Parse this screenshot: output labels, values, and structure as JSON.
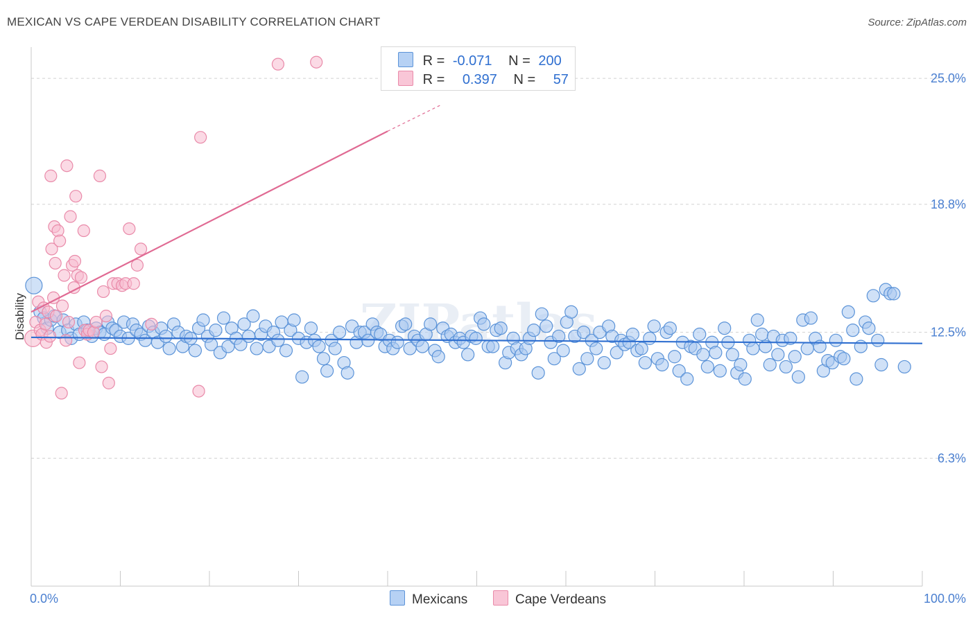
{
  "header": {
    "title": "MEXICAN VS CAPE VERDEAN DISABILITY CORRELATION CHART",
    "source": "Source: ZipAtlas.com"
  },
  "legend": {
    "series1": {
      "r_label": "R =",
      "r_value": "-0.071",
      "n_label": "N =",
      "n_value": "200"
    },
    "series2": {
      "r_label": "R =",
      "r_value": "0.397",
      "n_label": "N =",
      "n_value": "57"
    }
  },
  "bottom_legend": {
    "series1": "Mexicans",
    "series2": "Cape Verdeans"
  },
  "watermark": "ZIPatlas",
  "colors": {
    "blue_fill": "#a9c8f0",
    "blue_stroke": "#5b93d8",
    "blue_line": "#2f6fd0",
    "pink_fill": "#f7bcd0",
    "pink_stroke": "#e98aa9",
    "pink_line": "#e06a93",
    "grid": "#d0d0d0",
    "tick_text": "#4a7fd0"
  },
  "chart_data": {
    "type": "scatter",
    "title": "MEXICAN VS CAPE VERDEAN DISABILITY CORRELATION CHART",
    "xlabel": "",
    "ylabel": "Disability",
    "xlim": [
      0,
      100
    ],
    "ylim": [
      0,
      26.2
    ],
    "x_tick_labels": {
      "min": "0.0%",
      "max": "100.0%"
    },
    "y_ticks": [
      {
        "value": 25.0,
        "label": "25.0%"
      },
      {
        "value": 18.8,
        "label": "18.8%"
      },
      {
        "value": 12.5,
        "label": "12.5%"
      },
      {
        "value": 6.3,
        "label": "6.3%"
      }
    ],
    "series": [
      {
        "name": "Mexicans",
        "color": "blue",
        "r": -0.071,
        "n": 200,
        "trend": {
          "x0": 0,
          "y0": 12.25,
          "x1": 100,
          "y1": 11.95
        },
        "points": [
          [
            0.3,
            14.8
          ],
          [
            1.0,
            13.5
          ],
          [
            1.4,
            13.2
          ],
          [
            1.8,
            12.7
          ],
          [
            2.2,
            13.1
          ],
          [
            2.6,
            13.3
          ],
          [
            3.2,
            12.5
          ],
          [
            3.6,
            13.1
          ],
          [
            4.1,
            12.6
          ],
          [
            4.5,
            12.2
          ],
          [
            5.0,
            12.9
          ],
          [
            5.4,
            12.4
          ],
          [
            5.9,
            13.0
          ],
          [
            6.3,
            12.6
          ],
          [
            6.8,
            12.3
          ],
          [
            7.3,
            12.7
          ],
          [
            7.7,
            12.5
          ],
          [
            8.2,
            12.4
          ],
          [
            8.6,
            13.0
          ],
          [
            9.1,
            12.7
          ],
          [
            9.5,
            12.6
          ],
          [
            10.0,
            12.3
          ],
          [
            10.4,
            13.0
          ],
          [
            10.9,
            12.2
          ],
          [
            11.4,
            12.9
          ],
          [
            11.8,
            12.6
          ],
          [
            12.3,
            12.4
          ],
          [
            12.8,
            12.1
          ],
          [
            13.2,
            12.8
          ],
          [
            13.7,
            12.5
          ],
          [
            14.2,
            12.0
          ],
          [
            14.6,
            12.7
          ],
          [
            15.1,
            12.3
          ],
          [
            15.5,
            11.7
          ],
          [
            16.0,
            12.9
          ],
          [
            16.5,
            12.5
          ],
          [
            17.0,
            11.8
          ],
          [
            17.4,
            12.3
          ],
          [
            17.9,
            12.2
          ],
          [
            18.4,
            11.6
          ],
          [
            18.8,
            12.7
          ],
          [
            19.3,
            13.1
          ],
          [
            19.8,
            12.3
          ],
          [
            20.2,
            11.9
          ],
          [
            20.7,
            12.6
          ],
          [
            21.2,
            11.5
          ],
          [
            21.6,
            13.2
          ],
          [
            22.1,
            11.8
          ],
          [
            22.5,
            12.7
          ],
          [
            23.0,
            12.2
          ],
          [
            23.5,
            11.9
          ],
          [
            23.9,
            12.9
          ],
          [
            24.4,
            12.3
          ],
          [
            24.9,
            13.3
          ],
          [
            25.3,
            11.7
          ],
          [
            25.8,
            12.4
          ],
          [
            26.3,
            12.8
          ],
          [
            26.7,
            11.8
          ],
          [
            27.2,
            12.5
          ],
          [
            27.7,
            12.1
          ],
          [
            28.1,
            13.0
          ],
          [
            28.6,
            11.6
          ],
          [
            29.1,
            12.6
          ],
          [
            29.5,
            13.1
          ],
          [
            30.0,
            12.2
          ],
          [
            30.4,
            10.3
          ],
          [
            30.9,
            12.0
          ],
          [
            31.4,
            12.7
          ],
          [
            31.8,
            12.1
          ],
          [
            32.3,
            11.8
          ],
          [
            32.8,
            11.2
          ],
          [
            33.2,
            10.6
          ],
          [
            33.7,
            12.1
          ],
          [
            34.1,
            11.7
          ],
          [
            34.6,
            12.5
          ],
          [
            35.1,
            11.0
          ],
          [
            35.5,
            10.5
          ],
          [
            36.0,
            12.8
          ],
          [
            36.5,
            12.0
          ],
          [
            36.9,
            12.5
          ],
          [
            37.4,
            12.5
          ],
          [
            37.8,
            12.1
          ],
          [
            38.3,
            12.9
          ],
          [
            38.8,
            12.5
          ],
          [
            39.2,
            12.4
          ],
          [
            39.7,
            11.8
          ],
          [
            40.2,
            12.1
          ],
          [
            40.6,
            11.7
          ],
          [
            41.1,
            12.0
          ],
          [
            41.6,
            12.8
          ],
          [
            42.0,
            12.9
          ],
          [
            42.5,
            11.7
          ],
          [
            43.0,
            12.3
          ],
          [
            43.4,
            12.1
          ],
          [
            43.9,
            11.8
          ],
          [
            44.3,
            12.4
          ],
          [
            44.8,
            12.9
          ],
          [
            45.3,
            11.6
          ],
          [
            45.7,
            11.3
          ],
          [
            46.2,
            12.7
          ],
          [
            46.7,
            12.3
          ],
          [
            47.1,
            12.4
          ],
          [
            47.6,
            12.0
          ],
          [
            48.1,
            12.2
          ],
          [
            48.5,
            12.0
          ],
          [
            49.0,
            11.4
          ],
          [
            49.4,
            12.3
          ],
          [
            49.9,
            12.2
          ],
          [
            50.4,
            13.2
          ],
          [
            50.8,
            12.9
          ],
          [
            51.3,
            11.8
          ],
          [
            51.8,
            11.8
          ],
          [
            52.2,
            12.6
          ],
          [
            52.7,
            12.7
          ],
          [
            53.2,
            11.0
          ],
          [
            53.6,
            11.5
          ],
          [
            54.1,
            12.2
          ],
          [
            54.5,
            11.7
          ],
          [
            55.0,
            11.4
          ],
          [
            55.5,
            11.7
          ],
          [
            55.9,
            12.2
          ],
          [
            56.4,
            12.6
          ],
          [
            56.9,
            10.5
          ],
          [
            57.3,
            13.4
          ],
          [
            57.8,
            12.8
          ],
          [
            58.3,
            12.0
          ],
          [
            58.7,
            11.2
          ],
          [
            59.2,
            12.3
          ],
          [
            59.7,
            11.6
          ],
          [
            60.1,
            13.0
          ],
          [
            60.6,
            13.5
          ],
          [
            61.0,
            12.3
          ],
          [
            61.5,
            10.7
          ],
          [
            62.0,
            12.5
          ],
          [
            62.4,
            11.2
          ],
          [
            62.9,
            12.1
          ],
          [
            63.4,
            11.7
          ],
          [
            63.8,
            12.5
          ],
          [
            64.3,
            11.0
          ],
          [
            64.8,
            12.8
          ],
          [
            65.2,
            12.3
          ],
          [
            65.7,
            11.5
          ],
          [
            66.2,
            12.1
          ],
          [
            66.6,
            11.9
          ],
          [
            67.1,
            12.0
          ],
          [
            67.5,
            12.4
          ],
          [
            68.0,
            11.6
          ],
          [
            68.5,
            11.7
          ],
          [
            68.9,
            11.0
          ],
          [
            69.4,
            12.2
          ],
          [
            69.9,
            12.8
          ],
          [
            70.3,
            11.2
          ],
          [
            70.8,
            10.9
          ],
          [
            71.3,
            12.5
          ],
          [
            71.7,
            12.7
          ],
          [
            72.2,
            11.3
          ],
          [
            72.7,
            10.6
          ],
          [
            73.1,
            12.0
          ],
          [
            73.6,
            10.2
          ],
          [
            74.0,
            11.8
          ],
          [
            74.5,
            11.7
          ],
          [
            75.0,
            12.4
          ],
          [
            75.4,
            11.4
          ],
          [
            75.9,
            10.8
          ],
          [
            76.4,
            12.0
          ],
          [
            76.8,
            11.5
          ],
          [
            77.3,
            10.6
          ],
          [
            77.8,
            12.7
          ],
          [
            78.2,
            12.0
          ],
          [
            78.7,
            11.4
          ],
          [
            79.2,
            10.5
          ],
          [
            79.6,
            10.9
          ],
          [
            80.1,
            10.2
          ],
          [
            80.6,
            12.1
          ],
          [
            81.0,
            11.7
          ],
          [
            81.5,
            13.1
          ],
          [
            82.0,
            12.4
          ],
          [
            82.4,
            11.8
          ],
          [
            82.9,
            10.9
          ],
          [
            83.3,
            12.3
          ],
          [
            83.8,
            11.4
          ],
          [
            84.3,
            12.1
          ],
          [
            84.7,
            10.8
          ],
          [
            85.2,
            12.2
          ],
          [
            85.7,
            11.3
          ],
          [
            86.1,
            10.3
          ],
          [
            86.6,
            13.1
          ],
          [
            87.1,
            11.7
          ],
          [
            87.5,
            13.2
          ],
          [
            88.0,
            12.2
          ],
          [
            88.5,
            11.8
          ],
          [
            88.9,
            10.6
          ],
          [
            89.4,
            11.1
          ],
          [
            89.9,
            11.0
          ],
          [
            90.3,
            12.1
          ],
          [
            90.8,
            11.3
          ],
          [
            91.2,
            11.2
          ],
          [
            91.7,
            13.5
          ],
          [
            92.2,
            12.6
          ],
          [
            92.6,
            10.2
          ],
          [
            93.1,
            11.8
          ],
          [
            93.6,
            13.0
          ],
          [
            94.0,
            12.7
          ],
          [
            94.5,
            14.3
          ],
          [
            95.0,
            12.1
          ],
          [
            95.4,
            10.9
          ],
          [
            95.9,
            14.6
          ],
          [
            96.4,
            14.4
          ],
          [
            96.8,
            14.4
          ],
          [
            98.0,
            10.8
          ]
        ]
      },
      {
        "name": "Cape Verdeans",
        "color": "pink",
        "r": 0.397,
        "n": 57,
        "trend": {
          "x0": 0,
          "y0": 13.5,
          "x1": 40,
          "y1": 22.4,
          "dash_x1": 46,
          "dash_y1": 23.7
        },
        "points": [
          [
            0.2,
            12.2
          ],
          [
            0.5,
            13.0
          ],
          [
            0.8,
            14.0
          ],
          [
            1.0,
            12.6
          ],
          [
            1.2,
            12.4
          ],
          [
            1.4,
            13.7
          ],
          [
            1.6,
            12.9
          ],
          [
            1.7,
            12.0
          ],
          [
            1.9,
            13.5
          ],
          [
            2.1,
            12.3
          ],
          [
            2.2,
            20.2
          ],
          [
            2.3,
            16.6
          ],
          [
            2.5,
            14.2
          ],
          [
            2.6,
            17.7
          ],
          [
            2.7,
            15.9
          ],
          [
            2.8,
            13.3
          ],
          [
            3.0,
            17.5
          ],
          [
            3.2,
            17.0
          ],
          [
            3.4,
            9.5
          ],
          [
            3.5,
            13.8
          ],
          [
            3.7,
            15.3
          ],
          [
            3.9,
            12.1
          ],
          [
            4.0,
            20.7
          ],
          [
            4.2,
            13.0
          ],
          [
            4.4,
            18.2
          ],
          [
            4.6,
            15.8
          ],
          [
            4.8,
            14.7
          ],
          [
            4.9,
            16.0
          ],
          [
            5.0,
            19.2
          ],
          [
            5.2,
            15.3
          ],
          [
            5.4,
            11.0
          ],
          [
            5.6,
            15.2
          ],
          [
            5.9,
            17.5
          ],
          [
            6.0,
            12.6
          ],
          [
            6.3,
            12.4
          ],
          [
            6.5,
            12.6
          ],
          [
            7.0,
            12.5
          ],
          [
            7.3,
            13.0
          ],
          [
            7.7,
            20.2
          ],
          [
            7.9,
            10.8
          ],
          [
            8.1,
            14.5
          ],
          [
            8.4,
            13.3
          ],
          [
            8.7,
            10.0
          ],
          [
            8.9,
            11.7
          ],
          [
            9.2,
            14.9
          ],
          [
            9.7,
            14.9
          ],
          [
            10.2,
            14.8
          ],
          [
            10.6,
            14.9
          ],
          [
            11.0,
            17.6
          ],
          [
            11.5,
            14.9
          ],
          [
            11.9,
            15.8
          ],
          [
            12.3,
            16.6
          ],
          [
            13.5,
            12.9
          ],
          [
            18.8,
            9.6
          ],
          [
            19.0,
            22.1
          ],
          [
            27.7,
            25.7
          ],
          [
            32.0,
            25.8
          ]
        ]
      }
    ]
  }
}
